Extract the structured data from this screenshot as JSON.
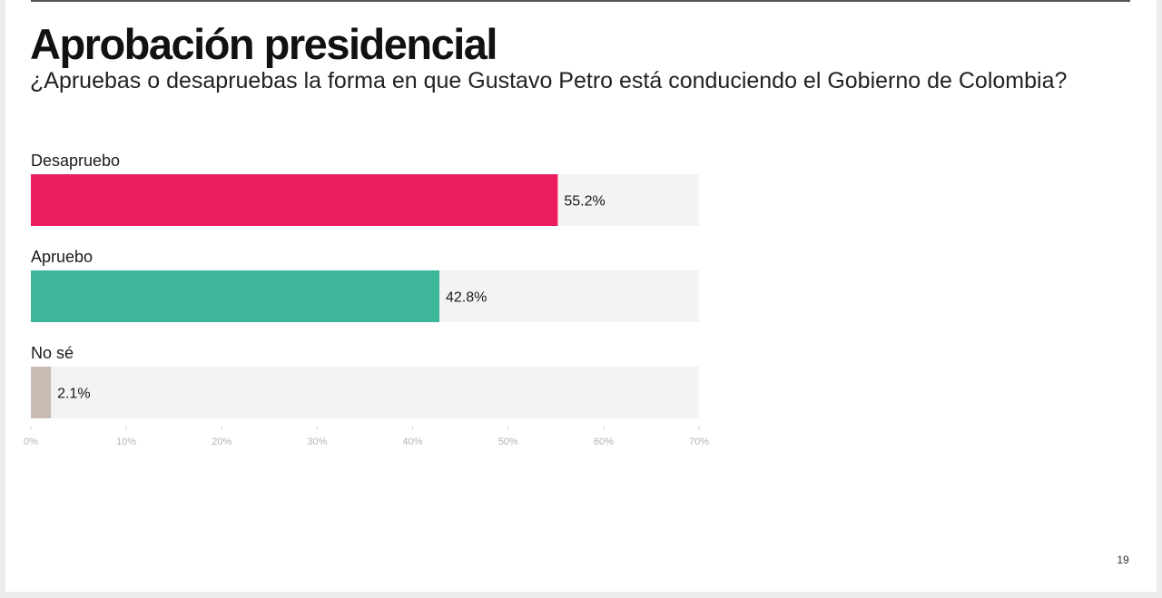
{
  "slide": {
    "title": "Aprobación presidencial",
    "subtitle": "¿Apruebas o desapruebas la forma en que Gustavo Petro está conduciendo el Gobierno de Colombia?",
    "page_number": "19"
  },
  "chart_data": {
    "type": "bar",
    "orientation": "horizontal",
    "title": "Aprobación presidencial",
    "subtitle": "¿Apruebas o desapruebas la forma en que Gustavo Petro está conduciendo el Gobierno de Colombia?",
    "categories": [
      "Desapruebo",
      "Apruebo",
      "No sé"
    ],
    "values": [
      55.2,
      42.8,
      2.1
    ],
    "value_labels": [
      "55.2%",
      "42.8%",
      "2.1%"
    ],
    "colors": [
      "#ec1d5e",
      "#3db69a",
      "#c9bab3"
    ],
    "track_color": "#f4f3f1",
    "xlim": [
      0,
      70
    ],
    "xticks": [
      0,
      10,
      20,
      30,
      40,
      50,
      60,
      70
    ],
    "xtick_labels": [
      "0%",
      "10%",
      "20%",
      "30%",
      "40%",
      "50%",
      "60%",
      "70%"
    ],
    "xlabel": "",
    "ylabel": "",
    "grid": false,
    "legend": "none"
  }
}
